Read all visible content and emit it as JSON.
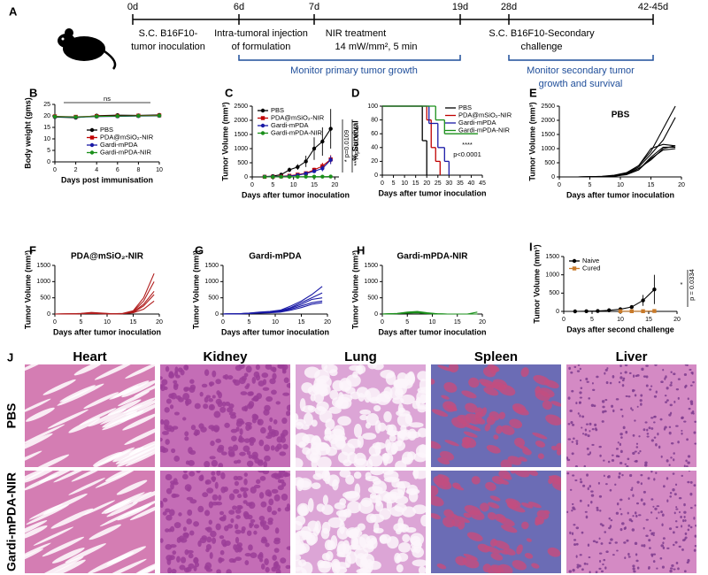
{
  "timeline": {
    "label": "A",
    "ticks": [
      "0d",
      "6d",
      "7d",
      "19d",
      "28d",
      "42-45d"
    ],
    "events": [
      "S.C. B16F10-",
      "tumor inoculation",
      "Intra-tumoral injection",
      "of formulation",
      "NIR treatment",
      "14 mW/mm², 5 min",
      "S.C. B16F10-Secondary",
      "challenge"
    ],
    "brackets": [
      "Monitor primary tumor growth",
      "Monitor secondary tumor",
      "growth and survival"
    ]
  },
  "chart_data": [
    {
      "label": "B",
      "type": "line",
      "xlabel": "Days post immunisation",
      "ylabel": "Body weight (gms)",
      "xlim": [
        0,
        10
      ],
      "ylim": [
        0,
        25
      ],
      "xticks": [
        0,
        2,
        4,
        6,
        8,
        10
      ],
      "yticks": [
        0,
        5,
        10,
        15,
        20,
        25
      ],
      "annotations": [
        "ns"
      ],
      "legend": "lower right",
      "series": [
        {
          "name": "PBS",
          "color": "#000000",
          "marker": "circle",
          "x": [
            0,
            2,
            4,
            6,
            8,
            10
          ],
          "values": [
            19.5,
            19.2,
            20.1,
            20.3,
            20.2,
            20.4
          ]
        },
        {
          "name": "PDA@mSiO₂-NIR",
          "color": "#c00000",
          "marker": "square",
          "x": [
            0,
            2,
            4,
            6,
            8,
            10
          ],
          "values": [
            19.8,
            19.6,
            19.9,
            20.0,
            20.1,
            20.2
          ]
        },
        {
          "name": "Gardi-mPDA",
          "color": "#1a1aa6",
          "marker": "circle",
          "x": [
            0,
            2,
            4,
            6,
            8,
            10
          ],
          "values": [
            19.6,
            19.4,
            19.7,
            19.8,
            19.9,
            20.0
          ]
        },
        {
          "name": "Gardi-mPDA-NIR",
          "color": "#1a8f1a",
          "marker": "circle",
          "x": [
            0,
            2,
            4,
            6,
            8,
            10
          ],
          "values": [
            19.7,
            19.5,
            19.8,
            19.9,
            20.0,
            20.1
          ]
        }
      ]
    },
    {
      "label": "C",
      "type": "line",
      "xlabel": "Days after tumor inoculation",
      "ylabel": "Tumor Volume (mm³)",
      "xlim": [
        0,
        21
      ],
      "ylim": [
        0,
        2500
      ],
      "xticks": [
        0,
        5,
        10,
        15,
        20
      ],
      "yticks": [
        0,
        500,
        1000,
        1500,
        2000,
        2500
      ],
      "annotations": [
        "* p=0.0109",
        "**** p<0.0001"
      ],
      "legend": "upper left",
      "series": [
        {
          "name": "PBS",
          "color": "#000000",
          "marker": "circle",
          "x": [
            3,
            5,
            7,
            9,
            11,
            13,
            15,
            17,
            19
          ],
          "values": [
            10,
            30,
            80,
            250,
            350,
            550,
            1000,
            1250,
            1700
          ],
          "errors": [
            5,
            10,
            30,
            80,
            100,
            200,
            400,
            500,
            700
          ]
        },
        {
          "name": "PDA@mSiO₂-NIR",
          "color": "#c00000",
          "marker": "square",
          "x": [
            3,
            5,
            7,
            9,
            11,
            13,
            15,
            17,
            19
          ],
          "values": [
            5,
            10,
            20,
            40,
            80,
            130,
            250,
            380,
            620
          ],
          "errors": [
            2,
            5,
            10,
            15,
            30,
            50,
            80,
            120,
            150
          ]
        },
        {
          "name": "Gardi-mPDA",
          "color": "#1a1aa6",
          "marker": "circle",
          "x": [
            3,
            5,
            7,
            9,
            11,
            13,
            15,
            17,
            19
          ],
          "values": [
            5,
            10,
            15,
            30,
            60,
            120,
            200,
            300,
            600
          ],
          "errors": [
            2,
            5,
            8,
            15,
            25,
            40,
            60,
            100,
            150
          ]
        },
        {
          "name": "Gardi-mPDA-NIR",
          "color": "#1a8f1a",
          "marker": "circle",
          "x": [
            3,
            5,
            7,
            9,
            11,
            13,
            15,
            17,
            19
          ],
          "values": [
            0,
            0,
            5,
            5,
            5,
            10,
            10,
            10,
            15
          ],
          "errors": [
            0,
            0,
            2,
            2,
            2,
            5,
            5,
            5,
            5
          ]
        }
      ]
    },
    {
      "label": "D",
      "type": "step",
      "xlabel": "Days after tumor inoculation",
      "ylabel": "% Survival",
      "xlim": [
        0,
        45
      ],
      "ylim": [
        0,
        100
      ],
      "xticks": [
        0,
        5,
        10,
        15,
        20,
        25,
        30,
        35,
        40,
        45
      ],
      "yticks": [
        0,
        20,
        40,
        60,
        80,
        100
      ],
      "annotations": [
        "****",
        "p<0.0001"
      ],
      "legend": "upper right",
      "series": [
        {
          "name": "PBS",
          "color": "#000000",
          "x": [
            0,
            18,
            20
          ],
          "values": [
            100,
            50,
            0
          ]
        },
        {
          "name": "PDA@mSiO₂-NIR",
          "color": "#c00000",
          "x": [
            0,
            20,
            22,
            24,
            26
          ],
          "values": [
            100,
            80,
            40,
            20,
            0
          ]
        },
        {
          "name": "Gardi-mPDA",
          "color": "#1a1aa6",
          "x": [
            0,
            21,
            25,
            28,
            30
          ],
          "values": [
            100,
            75,
            40,
            20,
            0
          ]
        },
        {
          "name": "Gardi-mPDA-NIR",
          "color": "#1a8f1a",
          "x": [
            0,
            24,
            28,
            43
          ],
          "values": [
            100,
            80,
            60,
            60
          ]
        }
      ]
    },
    {
      "label": "E",
      "type": "line",
      "title": "PBS",
      "xlabel": "Days after tumor inoculation",
      "ylabel": "Tumor Volume (mm³)",
      "xlim": [
        0,
        20
      ],
      "ylim": [
        0,
        2500
      ],
      "xticks": [
        0,
        5,
        10,
        15,
        20
      ],
      "yticks": [
        0,
        500,
        1000,
        1500,
        2000,
        2500
      ],
      "color": "#000000",
      "x": [
        0,
        3,
        5,
        7,
        9,
        11,
        13,
        15,
        17,
        19
      ],
      "series": [
        {
          "values": [
            0,
            0,
            5,
            20,
            60,
            150,
            400,
            900,
            1700,
            2500
          ]
        },
        {
          "values": [
            0,
            0,
            5,
            15,
            50,
            120,
            350,
            800,
            1300,
            2100
          ]
        },
        {
          "values": [
            0,
            0,
            5,
            10,
            40,
            100,
            300,
            600,
            1000,
            1100
          ]
        },
        {
          "values": [
            0,
            0,
            3,
            10,
            30,
            80,
            250,
            700,
            1050,
            1050
          ]
        },
        {
          "values": [
            0,
            0,
            3,
            8,
            30,
            90,
            250,
            650,
            950,
            1000
          ]
        },
        {
          "values": [
            0,
            0,
            5,
            12,
            45,
            130,
            400,
            1000,
            1150,
            1100
          ]
        }
      ]
    },
    {
      "label": "F",
      "type": "line",
      "title": "PDA@mSiO₂-NIR",
      "xlabel": "Days after tumor inoculation",
      "ylabel": "Tumor Volume (mm³)",
      "xlim": [
        0,
        20
      ],
      "ylim": [
        0,
        1500
      ],
      "xticks": [
        0,
        5,
        10,
        15,
        20
      ],
      "yticks": [
        0,
        500,
        1000,
        1500
      ],
      "color": "#b01c1c",
      "x": [
        0,
        3,
        5,
        7,
        9,
        11,
        13,
        15,
        17,
        19
      ],
      "series": [
        {
          "values": [
            0,
            5,
            20,
            50,
            30,
            10,
            20,
            100,
            500,
            1250
          ]
        },
        {
          "values": [
            0,
            5,
            15,
            40,
            20,
            10,
            15,
            80,
            400,
            1000
          ]
        },
        {
          "values": [
            0,
            5,
            10,
            30,
            15,
            5,
            10,
            60,
            300,
            700
          ]
        },
        {
          "values": [
            0,
            5,
            10,
            20,
            10,
            5,
            10,
            50,
            250,
            600
          ]
        },
        {
          "values": [
            0,
            5,
            10,
            20,
            10,
            5,
            10,
            40,
            150,
            400
          ]
        }
      ]
    },
    {
      "label": "G",
      "type": "line",
      "title": "Gardi-mPDA",
      "xlabel": "Days after tumor inoculation",
      "ylabel": "Tumor Volume (mm³)",
      "xlim": [
        0,
        20
      ],
      "ylim": [
        0,
        1500
      ],
      "xticks": [
        0,
        5,
        10,
        15,
        20
      ],
      "yticks": [
        0,
        500,
        1000,
        1500
      ],
      "color": "#1a1aa6",
      "x": [
        0,
        3,
        5,
        7,
        9,
        11,
        13,
        15,
        17,
        19
      ],
      "series": [
        {
          "values": [
            0,
            10,
            30,
            60,
            80,
            120,
            250,
            400,
            600,
            850
          ]
        },
        {
          "values": [
            0,
            10,
            25,
            50,
            70,
            100,
            200,
            350,
            500,
            650
          ]
        },
        {
          "values": [
            0,
            10,
            20,
            40,
            60,
            90,
            180,
            300,
            450,
            500
          ]
        },
        {
          "values": [
            0,
            10,
            20,
            40,
            50,
            80,
            150,
            250,
            350,
            400
          ]
        },
        {
          "values": [
            0,
            5,
            15,
            30,
            40,
            60,
            120,
            200,
            300,
            350
          ]
        }
      ]
    },
    {
      "label": "H",
      "type": "line",
      "title": "Gardi-mPDA-NIR",
      "xlabel": "Days after tumor inoculation",
      "ylabel": "Tumor Volume (mm³)",
      "xlim": [
        0,
        20
      ],
      "ylim": [
        0,
        1500
      ],
      "xticks": [
        0,
        5,
        10,
        15,
        20
      ],
      "yticks": [
        0,
        500,
        1000,
        1500
      ],
      "color": "#1a8f1a",
      "x": [
        0,
        3,
        5,
        7,
        9,
        11,
        13,
        15,
        17,
        19
      ],
      "series": [
        {
          "values": [
            0,
            20,
            60,
            80,
            40,
            10,
            0,
            0,
            0,
            60
          ]
        },
        {
          "values": [
            0,
            15,
            50,
            60,
            30,
            5,
            0,
            0,
            0,
            0
          ]
        },
        {
          "values": [
            0,
            10,
            40,
            50,
            20,
            5,
            0,
            0,
            0,
            0
          ]
        },
        {
          "values": [
            0,
            10,
            30,
            40,
            10,
            0,
            0,
            0,
            0,
            0
          ]
        }
      ]
    },
    {
      "label": "I",
      "type": "line",
      "xlabel": "Days after second challenge",
      "ylabel": "Tumor Volume (mm³)",
      "xlim": [
        0,
        20
      ],
      "ylim": [
        0,
        1500
      ],
      "xticks": [
        0,
        5,
        10,
        15,
        20
      ],
      "yticks": [
        0,
        500,
        1000,
        1500
      ],
      "annotations": [
        "*",
        "p = 0.0334"
      ],
      "legend": "upper left",
      "series": [
        {
          "name": "Naive",
          "color": "#000000",
          "marker": "circle",
          "x": [
            2,
            4,
            6,
            8,
            10,
            12,
            14,
            16
          ],
          "values": [
            0,
            5,
            10,
            30,
            60,
            120,
            300,
            600
          ],
          "errors": [
            0,
            0,
            5,
            10,
            20,
            50,
            150,
            400
          ]
        },
        {
          "name": "Cured",
          "color": "#c87a2a",
          "marker": "square",
          "x": [
            10,
            12,
            14,
            16
          ],
          "values": [
            5,
            5,
            5,
            10
          ]
        }
      ]
    }
  ],
  "histology": {
    "label": "J",
    "columns": [
      "Heart",
      "Kidney",
      "Lung",
      "Spleen",
      "Liver"
    ],
    "rows": [
      "PBS",
      "Gardi-mPDA-NIR"
    ]
  }
}
